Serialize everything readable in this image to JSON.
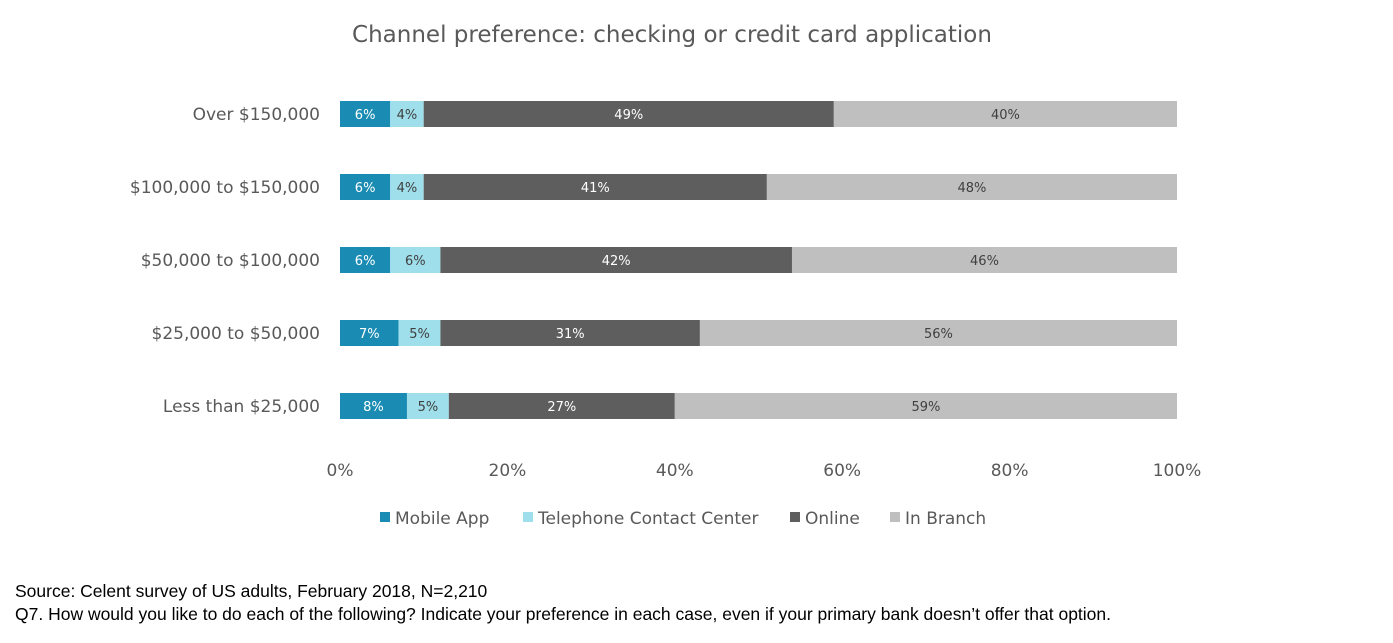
{
  "chart_data": {
    "type": "bar",
    "orientation": "horizontal",
    "stacked": true,
    "title": "Channel preference: checking or credit card application",
    "categories": [
      "Over $150,000",
      "$100,000 to $150,000",
      "$50,000 to $100,000",
      "$25,000 to $50,000",
      "Less than $25,000"
    ],
    "series": [
      {
        "name": "Mobile App",
        "color": "#1a8bb3",
        "label_color": "#ffffff",
        "values": [
          6,
          6,
          6,
          7,
          8
        ]
      },
      {
        "name": "Telephone Contact Center",
        "color": "#9fdfeb",
        "label_color": "#404040",
        "values": [
          4,
          4,
          6,
          5,
          5
        ]
      },
      {
        "name": "Online",
        "color": "#5e5e5e",
        "label_color": "#ffffff",
        "values": [
          49,
          41,
          42,
          31,
          27
        ]
      },
      {
        "name": "In Branch",
        "color": "#bfbfbf",
        "label_color": "#404040",
        "values": [
          40,
          48,
          46,
          56,
          59
        ]
      }
    ],
    "xlim": [
      0,
      100
    ],
    "x_ticks": [
      "0%",
      "20%",
      "40%",
      "60%",
      "80%",
      "100%"
    ],
    "grid": false,
    "legend_position": "bottom"
  },
  "footer": {
    "source": "Source: Celent survey of US adults, February 2018, N=2,210",
    "question": "Q7. How would you like to do each of the following? Indicate your preference in each case, even if your primary bank doesn’t offer that option."
  }
}
